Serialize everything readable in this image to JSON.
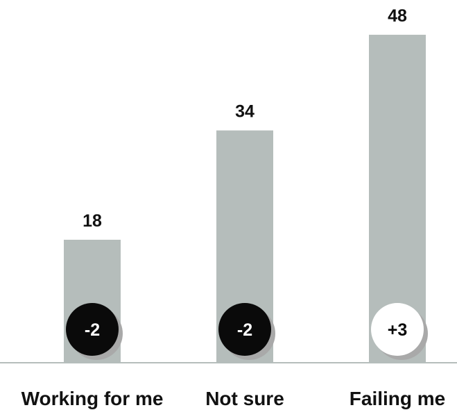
{
  "chart_data": {
    "type": "bar",
    "categories": [
      "Working for me",
      "Not sure",
      "Failing me"
    ],
    "values": [
      18,
      34,
      48
    ],
    "changes": [
      "-2",
      "-2",
      "+3"
    ],
    "ylim": [
      0,
      50
    ],
    "grid": false,
    "colors": {
      "bar": "#b5bdbb",
      "axis": "#b5bdbb",
      "negative_badge": "#0a0a0a",
      "positive_badge": "#ffffff",
      "badge_shadow": "#a9a9a9"
    }
  }
}
